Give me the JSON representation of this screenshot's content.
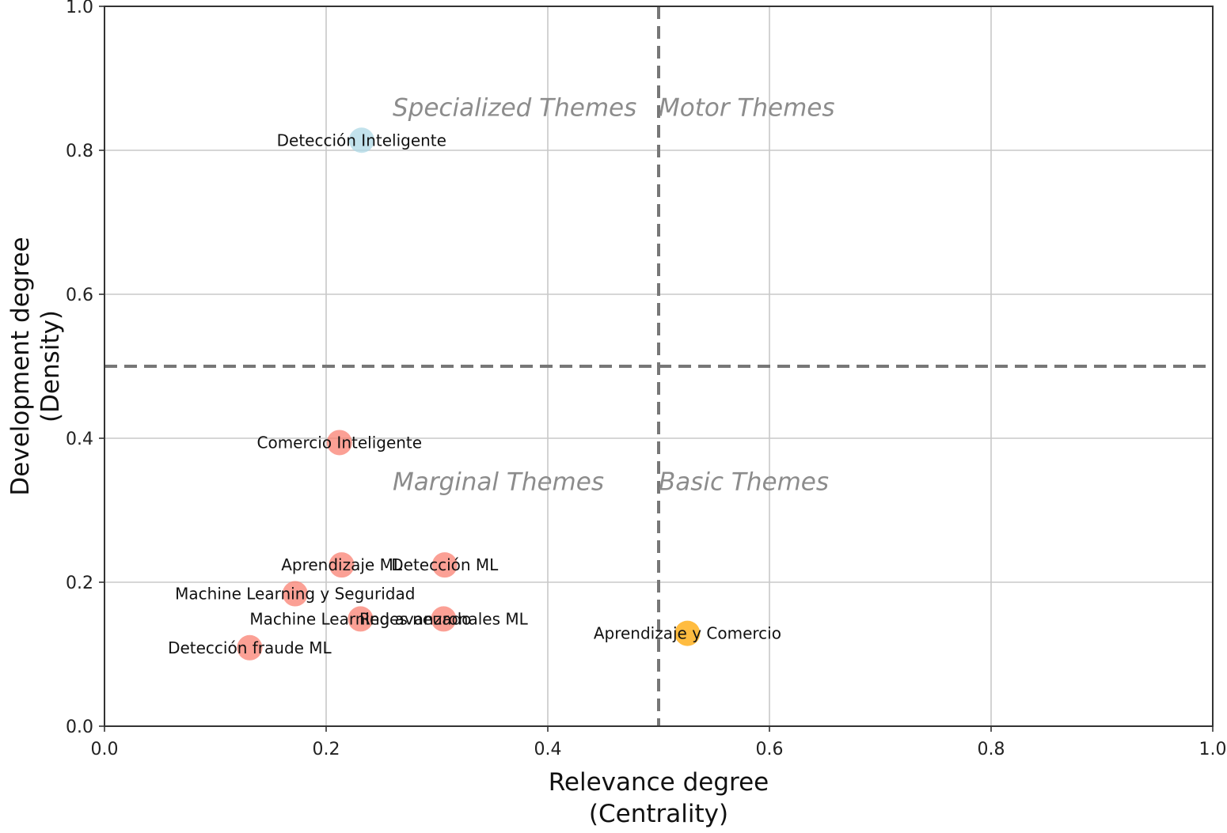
{
  "chart_data": {
    "type": "scatter",
    "xlabel_lines": [
      "Relevance degree",
      "(Centrality)"
    ],
    "ylabel_lines": [
      "Development degree",
      "(Density)"
    ],
    "xlim": [
      0,
      1
    ],
    "ylim": [
      0,
      1
    ],
    "xticks": [
      "0.0",
      "0.2",
      "0.4",
      "0.6",
      "0.8",
      "1.0"
    ],
    "yticks": [
      "0.0",
      "0.2",
      "0.4",
      "0.6",
      "0.8",
      "1.0"
    ],
    "xtick_values": [
      0,
      0.2,
      0.4,
      0.6,
      0.8,
      1.0
    ],
    "ytick_values": [
      0,
      0.2,
      0.4,
      0.6,
      0.8,
      1.0
    ],
    "grid": true,
    "reference_lines": {
      "x": 0.5,
      "y": 0.5,
      "style": "dashed"
    },
    "quadrant_labels": [
      {
        "text": "Specialized Themes",
        "x": 0.26,
        "y": 0.86
      },
      {
        "text": "Motor Themes",
        "x": 0.5,
        "y": 0.86
      },
      {
        "text": "Marginal Themes",
        "x": 0.26,
        "y": 0.34
      },
      {
        "text": "Basic Themes",
        "x": 0.5,
        "y": 0.34
      }
    ],
    "points": [
      {
        "label": "Detección Inteligente",
        "x": 0.232,
        "y": 0.814,
        "color": "#add8e6"
      },
      {
        "label": "Comercio Inteligente",
        "x": 0.212,
        "y": 0.394,
        "color": "#fa8072"
      },
      {
        "label": "Aprendizaje ML",
        "x": 0.214,
        "y": 0.224,
        "color": "#fa8072"
      },
      {
        "label": "Detección ML",
        "x": 0.307,
        "y": 0.224,
        "color": "#fa8072"
      },
      {
        "label": "Machine Learning y Seguridad",
        "x": 0.172,
        "y": 0.184,
        "color": "#fa8072"
      },
      {
        "label": "Machine Learning avanzado",
        "x": 0.231,
        "y": 0.149,
        "color": "#fa8072"
      },
      {
        "label": "Redes neuronales ML",
        "x": 0.306,
        "y": 0.149,
        "color": "#fa8072"
      },
      {
        "label": "Detección fraude ML",
        "x": 0.131,
        "y": 0.109,
        "color": "#fa8072"
      },
      {
        "label": "Aprendizaje y Comercio",
        "x": 0.526,
        "y": 0.129,
        "color": "#ffa500"
      }
    ]
  }
}
